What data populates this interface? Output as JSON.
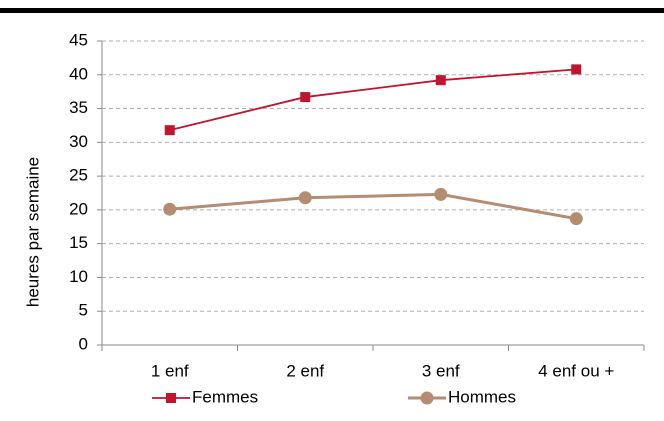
{
  "chart_data": {
    "type": "line",
    "categories": [
      "1 enf",
      "2 enf",
      "3 enf",
      "4 enf ou +"
    ],
    "series": [
      {
        "name": "Femmes",
        "color": "#c0142f",
        "marker": "square",
        "values": [
          31.8,
          36.7,
          39.2,
          40.8
        ]
      },
      {
        "name": "Hommes",
        "color": "#b48c72",
        "marker": "circle",
        "values": [
          20.1,
          21.8,
          22.3,
          18.7
        ]
      }
    ],
    "ylabel": "heures par semaine",
    "ylim": [
      0,
      45
    ],
    "yticks": [
      0,
      5,
      10,
      15,
      20,
      25,
      30,
      35,
      40,
      45
    ],
    "grid": true,
    "legend": "bottom"
  }
}
